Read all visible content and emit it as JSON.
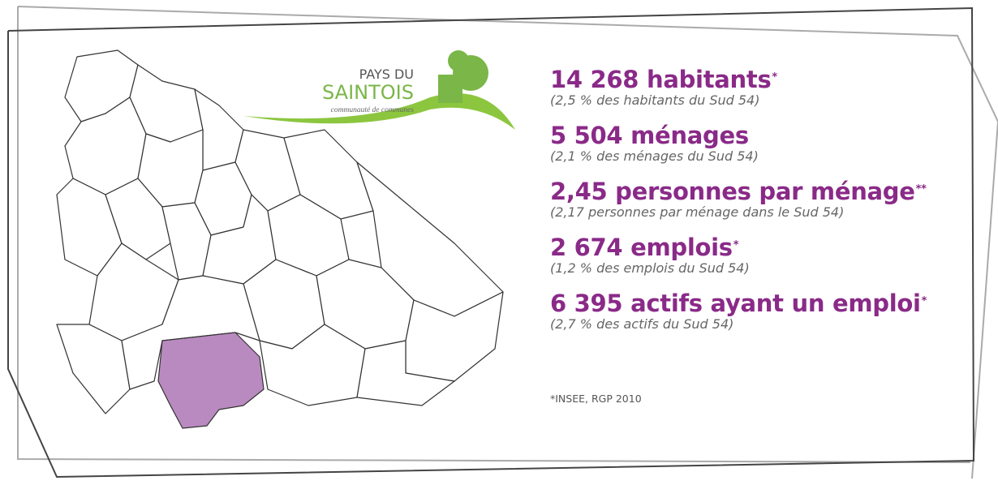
{
  "logo": {
    "line1": "PAYS DU",
    "line2": "SAINTOIS",
    "tagline": "communauté de communes"
  },
  "stats": [
    {
      "headline": "14 268 habitants",
      "mark": "*",
      "note": "(2,5 % des habitants du Sud 54)"
    },
    {
      "headline": "5 504 ménages",
      "mark": "",
      "note": "(2,1 % des ménages du Sud 54)"
    },
    {
      "headline": "2,45 personnes par ménage",
      "mark": "**",
      "note": "(2,17 personnes par ménage dans le Sud 54)"
    },
    {
      "headline": "2 674 emplois",
      "mark": "*",
      "note": "(1,2 % des emplois du Sud 54)"
    },
    {
      "headline": "6 395 actifs ayant un emploi",
      "mark": "*",
      "note": "(2,7 % des actifs du Sud 54)"
    }
  ],
  "footnote": "*INSEE, RGP 2010"
}
